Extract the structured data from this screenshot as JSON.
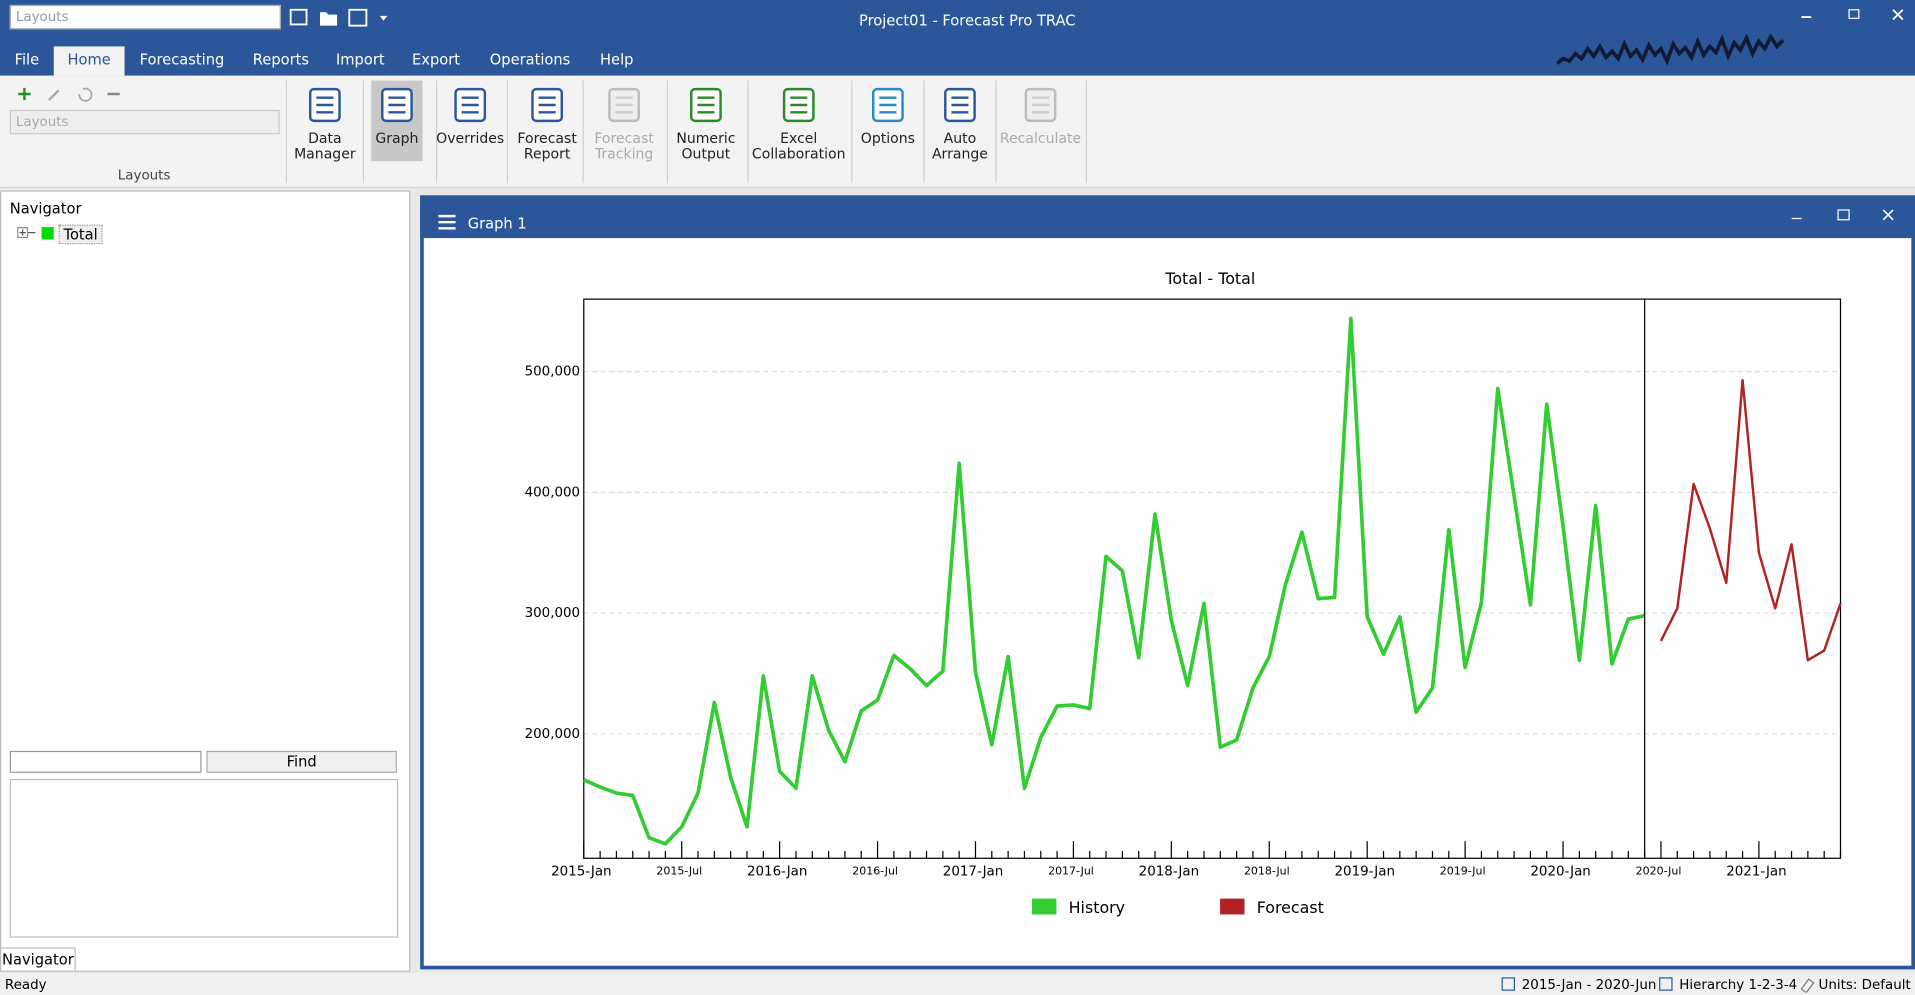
{
  "title_bar": {
    "combo": "Layouts",
    "title": "Project01 - Forecast Pro TRAC"
  },
  "menu": [
    "File",
    "Home",
    "Forecasting",
    "Reports",
    "Import",
    "Export",
    "Operations",
    "Help"
  ],
  "active_menu": 1,
  "ribbon": {
    "combo": "Layouts",
    "group": "Layouts",
    "buttons": [
      {
        "label": [
          "Data",
          "Manager"
        ],
        "disabled": false
      },
      {
        "label": [
          "Graph"
        ],
        "disabled": false,
        "selected": true
      },
      {
        "label": [
          "Overrides"
        ],
        "disabled": false
      },
      {
        "label": [
          "Forecast",
          "Report"
        ],
        "disabled": false
      },
      {
        "label": [
          "Forecast",
          "Tracking"
        ],
        "disabled": true
      },
      {
        "label": [
          "Numeric",
          "Output"
        ],
        "disabled": false
      },
      {
        "label": [
          "Excel",
          "Collaboration"
        ],
        "disabled": false
      },
      {
        "label": [
          "Options"
        ],
        "disabled": false
      },
      {
        "label": [
          "Auto",
          "Arrange"
        ],
        "disabled": false
      },
      {
        "label": [
          "Recalculate"
        ],
        "disabled": true
      }
    ]
  },
  "navigator": {
    "title": "Navigator",
    "item": "Total",
    "find": "Find",
    "tab": "Navigator"
  },
  "graph_window": {
    "title": "Graph 1"
  },
  "status": {
    "left": "Ready",
    "range": "2015-Jan - 2020-Jun",
    "hierarchy": "Hierarchy 1-2-3-4",
    "units": "Units: Default"
  },
  "chart_data": {
    "type": "line",
    "title": "Total - Total",
    "categories": [
      "2015-Jan",
      null,
      null,
      null,
      null,
      null,
      "2015-Jul",
      null,
      null,
      null,
      null,
      null,
      "2016-Jan",
      null,
      null,
      null,
      null,
      null,
      "2016-Jul",
      null,
      null,
      null,
      null,
      null,
      "2017-Jan",
      null,
      null,
      null,
      null,
      null,
      "2017-Jul",
      null,
      null,
      null,
      null,
      null,
      "2018-Jan",
      null,
      null,
      null,
      null,
      null,
      "2018-Jul",
      null,
      null,
      null,
      null,
      null,
      "2019-Jan",
      null,
      null,
      null,
      null,
      null,
      "2019-Jul",
      null,
      null,
      null,
      null,
      null,
      "2020-Jan",
      null,
      null,
      null,
      null,
      null,
      "2020-Jul",
      null,
      null,
      null,
      null,
      null,
      "2021-Jan",
      null,
      null,
      null,
      null,
      null
    ],
    "series": [
      {
        "name": "History",
        "color": "#33cc33",
        "values": [
          162000,
          156000,
          151000,
          149000,
          114000,
          109000,
          123000,
          151000,
          226000,
          164000,
          123000,
          248000,
          169000,
          155000,
          248000,
          203000,
          177000,
          219000,
          228000,
          265000,
          254000,
          240000,
          252000,
          424000,
          251000,
          191000,
          264000,
          155000,
          197000,
          223000,
          224000,
          221000,
          347000,
          335000,
          263000,
          382000,
          294000,
          240000,
          308000,
          189000,
          195000,
          238000,
          264000,
          324000,
          367000,
          312000,
          313000,
          544000,
          297000,
          266000,
          297000,
          218000,
          238000,
          369000,
          255000,
          309000,
          486000,
          397000,
          307000,
          473000,
          372000,
          261000,
          389000,
          258000,
          295000,
          298000,
          null,
          null,
          null,
          null,
          null,
          null,
          null,
          null,
          null,
          null,
          null,
          null
        ]
      },
      {
        "name": "Forecast",
        "color": "#b22222",
        "values": [
          null,
          null,
          null,
          null,
          null,
          null,
          null,
          null,
          null,
          null,
          null,
          null,
          null,
          null,
          null,
          null,
          null,
          null,
          null,
          null,
          null,
          null,
          null,
          null,
          null,
          null,
          null,
          null,
          null,
          null,
          null,
          null,
          null,
          null,
          null,
          null,
          null,
          null,
          null,
          null,
          null,
          null,
          null,
          null,
          null,
          null,
          null,
          null,
          null,
          null,
          null,
          null,
          null,
          null,
          null,
          null,
          null,
          null,
          null,
          null,
          null,
          null,
          null,
          null,
          null,
          null,
          277000,
          304000,
          407000,
          370000,
          325000,
          493000,
          350000,
          304000,
          357000,
          261000,
          269000,
          308000
        ]
      }
    ],
    "ylim": [
      97000,
      560000
    ],
    "yticks": [
      {
        "value": 200000,
        "label": "200,000"
      },
      {
        "value": 300000,
        "label": "300,000"
      },
      {
        "value": 400000,
        "label": "400,000"
      },
      {
        "value": 500000,
        "label": "500,000"
      }
    ],
    "grid": true,
    "legend": "bottom"
  }
}
